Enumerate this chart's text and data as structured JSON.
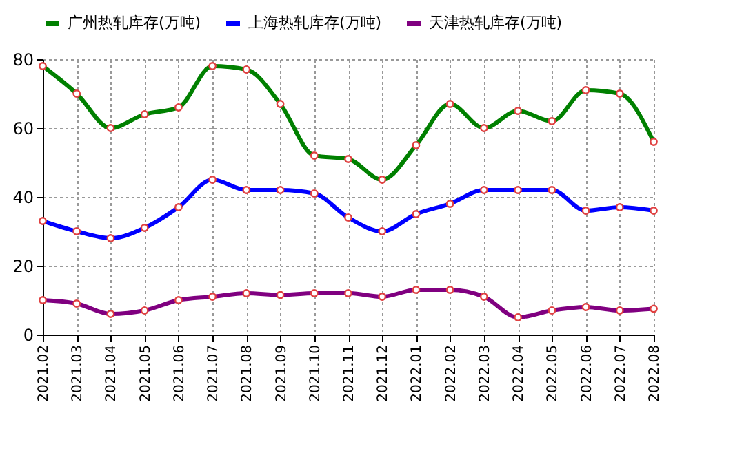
{
  "chart_data": {
    "type": "line",
    "categories": [
      "2021.02",
      "2021.03",
      "2021.04",
      "2021.05",
      "2021.06",
      "2021.07",
      "2021.08",
      "2021.09",
      "2021.10",
      "2021.11",
      "2021.12",
      "2022.01",
      "2022.02",
      "2022.03",
      "2022.04",
      "2022.05",
      "2022.06",
      "2022.07",
      "2022.08"
    ],
    "series": [
      {
        "name": "广州热轧库存(万吨)",
        "color": "#008000",
        "values": [
          78,
          70,
          60,
          64,
          66,
          78,
          77,
          67,
          52,
          51,
          45,
          55,
          67,
          60,
          65,
          62,
          71,
          70,
          56
        ]
      },
      {
        "name": "上海热轧库存(万吨)",
        "color": "#0000ff",
        "values": [
          33,
          30,
          28,
          31,
          37,
          45,
          42,
          42,
          41,
          34,
          30,
          35,
          38,
          42,
          42,
          42,
          36,
          37,
          36
        ]
      },
      {
        "name": "天津热轧库存(万吨)",
        "color": "#800080",
        "values": [
          10,
          9,
          6,
          7,
          10,
          11,
          12,
          11.5,
          12,
          12,
          11,
          13,
          13,
          11,
          5,
          7,
          8,
          7,
          7.5
        ]
      }
    ],
    "ylim": [
      0,
      80
    ],
    "yticks": [
      0,
      20,
      40,
      60,
      80
    ],
    "grid": true,
    "legend": "top",
    "marker": "circle",
    "line_style": "solid"
  }
}
